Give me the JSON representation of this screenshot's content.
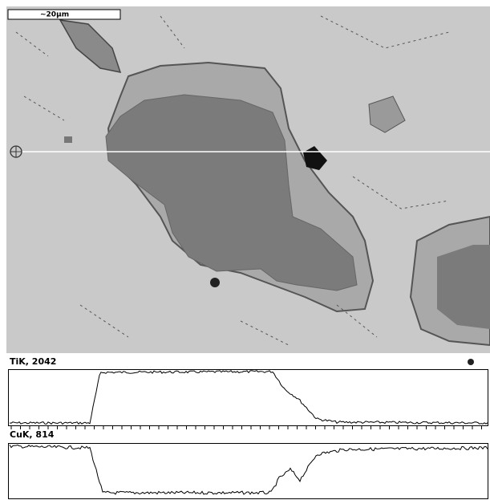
{
  "scale_bar": "~20μm",
  "profiles": [
    {
      "label": "TiK, 2042"
    },
    {
      "label": "CuK, 814"
    }
  ]
}
